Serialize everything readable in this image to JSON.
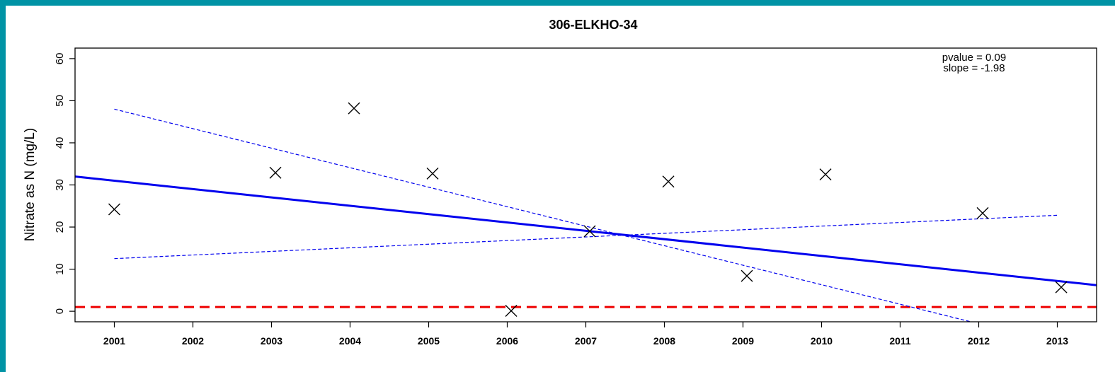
{
  "chart_data": {
    "type": "scatter",
    "title": "306-ELKHO-34",
    "xlabel": "",
    "ylabel": "Nitrate as N (mg/L)",
    "xlim": [
      2000.5,
      2013.5
    ],
    "ylim": [
      -2.5,
      62.5
    ],
    "x_ticks": [
      "2001",
      "2002",
      "2003",
      "2004",
      "2005",
      "2006",
      "2007",
      "2008",
      "2009",
      "2010",
      "2011",
      "2012",
      "2013"
    ],
    "y_ticks": [
      "0",
      "10",
      "20",
      "30",
      "40",
      "50",
      "60"
    ],
    "grid": false,
    "points": [
      {
        "x": 2001.0,
        "y": 24.2
      },
      {
        "x": 2003.05,
        "y": 32.9
      },
      {
        "x": 2004.05,
        "y": 48.2
      },
      {
        "x": 2005.05,
        "y": 32.7
      },
      {
        "x": 2006.05,
        "y": 0.1
      },
      {
        "x": 2007.05,
        "y": 19.0
      },
      {
        "x": 2008.05,
        "y": 30.8
      },
      {
        "x": 2009.05,
        "y": 8.4
      },
      {
        "x": 2010.05,
        "y": 32.5
      },
      {
        "x": 2012.05,
        "y": 23.3
      },
      {
        "x": 2013.05,
        "y": 5.7
      }
    ],
    "trend_line": {
      "x": [
        2000.5,
        2013.5
      ],
      "y": [
        32.0,
        6.2
      ],
      "color": "#0000ee",
      "style": "solid"
    },
    "confidence_lines": [
      {
        "x": [
          2001.0,
          2011.9
        ],
        "y": [
          48.0,
          -2.5
        ],
        "color": "#0000ee",
        "style": "dashed"
      },
      {
        "x": [
          2001.0,
          2013.0
        ],
        "y": [
          12.5,
          22.8
        ],
        "color": "#0000ee",
        "style": "dashed"
      }
    ],
    "reference_line": {
      "y": 1.0,
      "color": "#ee0000",
      "style": "dashed"
    },
    "annotations": [
      "pvalue = 0.09",
      "slope = -1.98"
    ]
  },
  "frame_color": "#0093a5",
  "point_color": "#000000"
}
